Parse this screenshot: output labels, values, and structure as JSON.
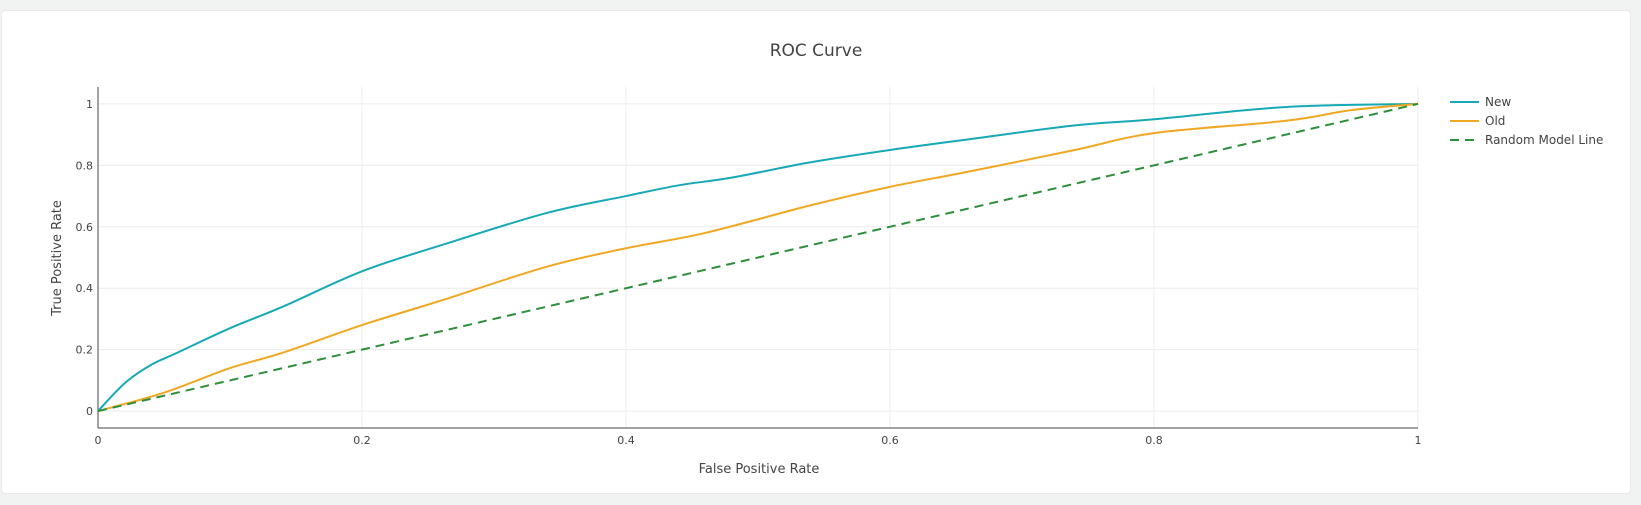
{
  "chart_data": {
    "type": "line",
    "title": "ROC Curve",
    "xlabel": "False Positive Rate",
    "ylabel": "True Positive Rate",
    "xlim": [
      0,
      1
    ],
    "ylim": [
      -0.055,
      1.055
    ],
    "x_ticks": [
      "0",
      "0.2",
      "0.4",
      "0.6",
      "0.8",
      "1"
    ],
    "y_ticks": [
      "0",
      "0.2",
      "0.4",
      "0.6",
      "0.8",
      "1"
    ],
    "x_tick_values": [
      0,
      0.2,
      0.4,
      0.6,
      0.8,
      1
    ],
    "y_tick_values": [
      0,
      0.2,
      0.4,
      0.6,
      0.8,
      1
    ],
    "grid": true,
    "legend_position": "top-right",
    "series": [
      {
        "name": "New",
        "color": "#17a9b5",
        "dash": "solid",
        "x": [
          0,
          0.02,
          0.04,
          0.06,
          0.1,
          0.14,
          0.2,
          0.26,
          0.34,
          0.4,
          0.44,
          0.48,
          0.54,
          0.6,
          0.66,
          0.74,
          0.8,
          0.9,
          1
        ],
        "y": [
          0,
          0.09,
          0.15,
          0.19,
          0.27,
          0.34,
          0.455,
          0.54,
          0.645,
          0.7,
          0.735,
          0.76,
          0.81,
          0.85,
          0.885,
          0.93,
          0.95,
          0.99,
          1
        ]
      },
      {
        "name": "Old",
        "color": "#f0a722",
        "dash": "solid",
        "x": [
          0,
          0.05,
          0.1,
          0.14,
          0.2,
          0.26,
          0.34,
          0.4,
          0.46,
          0.54,
          0.6,
          0.66,
          0.74,
          0.8,
          0.9,
          0.95,
          1
        ],
        "y": [
          0,
          0.06,
          0.14,
          0.19,
          0.28,
          0.36,
          0.47,
          0.53,
          0.58,
          0.67,
          0.73,
          0.78,
          0.85,
          0.905,
          0.945,
          0.98,
          1
        ]
      },
      {
        "name": "Random Model Line",
        "color": "#2e8f3a",
        "dash": "dashed",
        "x": [
          0,
          1
        ],
        "y": [
          0,
          1
        ]
      }
    ]
  }
}
